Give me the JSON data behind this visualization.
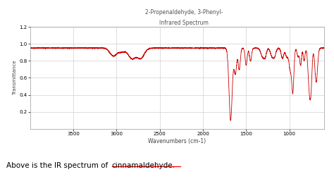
{
  "title1": "2-Propenaldehyde, 3-Phenyl-",
  "title2": "Infrared Spectrum",
  "xlabel": "Wavenumbers (cm-1)",
  "ylabel": "Transmittance",
  "xlim": [
    4000,
    600
  ],
  "ylim": [
    0.0,
    1.2
  ],
  "yticks": [
    0.2,
    0.4,
    0.6,
    0.8,
    1.0,
    1.2
  ],
  "xticks": [
    3500,
    3000,
    2500,
    2000,
    1500,
    1000
  ],
  "caption_normal": "Above is the IR spectrum of ",
  "caption_underline": "cinnamaldehyde",
  "caption_end": ".",
  "line_color": "#cc0000",
  "grid_color": "#d0d0d0",
  "background_color": "#ffffff"
}
